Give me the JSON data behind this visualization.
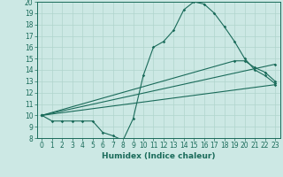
{
  "title": "",
  "xlabel": "Humidex (Indice chaleur)",
  "ylabel": "",
  "xlim": [
    -0.5,
    23.5
  ],
  "ylim": [
    8,
    20
  ],
  "yticks": [
    8,
    9,
    10,
    11,
    12,
    13,
    14,
    15,
    16,
    17,
    18,
    19,
    20
  ],
  "xticks": [
    0,
    1,
    2,
    3,
    4,
    5,
    6,
    7,
    8,
    9,
    10,
    11,
    12,
    13,
    14,
    15,
    16,
    17,
    18,
    19,
    20,
    21,
    22,
    23
  ],
  "bg_color": "#cce8e4",
  "line_color": "#1a6b5a",
  "line1_x": [
    0,
    1,
    2,
    3,
    4,
    5,
    6,
    7,
    8,
    9,
    10,
    11,
    12,
    13,
    14,
    15,
    16,
    17,
    18,
    19,
    20,
    21,
    22,
    23
  ],
  "line1_y": [
    10.0,
    9.5,
    9.5,
    9.5,
    9.5,
    9.5,
    8.5,
    8.2,
    7.8,
    9.7,
    13.5,
    16.0,
    16.5,
    17.5,
    19.3,
    20.0,
    19.8,
    19.0,
    17.8,
    16.5,
    15.0,
    14.0,
    13.5,
    12.8
  ],
  "line2_x": [
    0,
    23
  ],
  "line2_y": [
    10.0,
    12.7
  ],
  "line3_x": [
    0,
    23
  ],
  "line3_y": [
    10.0,
    14.5
  ],
  "line4_x": [
    0,
    19,
    20,
    21,
    22,
    23
  ],
  "line4_y": [
    10.0,
    14.8,
    14.8,
    14.2,
    13.8,
    13.0
  ],
  "grid_color": "#b0d4cc",
  "tick_font_size": 5.5,
  "xlabel_font_size": 6.5
}
